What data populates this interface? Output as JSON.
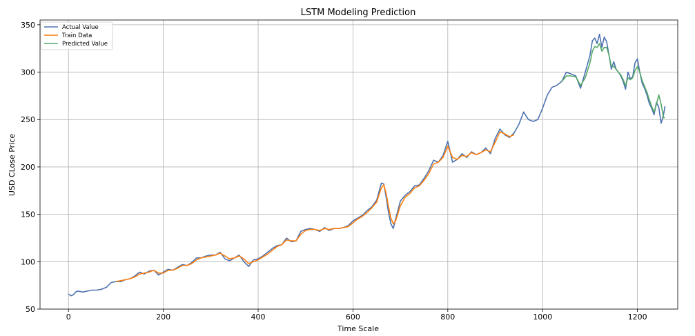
{
  "chart_data": {
    "type": "line",
    "title": "LSTM Modeling Prediction",
    "xlabel": "Time Scale",
    "ylabel": "USD CLose Price",
    "xlim": [
      -60,
      1285
    ],
    "ylim": [
      50,
      355
    ],
    "xticks": [
      0,
      200,
      400,
      600,
      800,
      1000,
      1200
    ],
    "yticks": [
      50,
      100,
      150,
      200,
      250,
      300,
      350
    ],
    "grid": true,
    "legend_position": "top-left",
    "series": [
      {
        "name": "Actual Value",
        "color": "#4c72b0",
        "points": [
          [
            0,
            66
          ],
          [
            5,
            64
          ],
          [
            10,
            65
          ],
          [
            15,
            68
          ],
          [
            20,
            69
          ],
          [
            30,
            68
          ],
          [
            40,
            69
          ],
          [
            50,
            70
          ],
          [
            60,
            70
          ],
          [
            70,
            71
          ],
          [
            80,
            73
          ],
          [
            90,
            78
          ],
          [
            100,
            79
          ],
          [
            110,
            79
          ],
          [
            120,
            81
          ],
          [
            130,
            82
          ],
          [
            140,
            85
          ],
          [
            150,
            89
          ],
          [
            160,
            87
          ],
          [
            170,
            90
          ],
          [
            180,
            91
          ],
          [
            190,
            86
          ],
          [
            200,
            89
          ],
          [
            210,
            92
          ],
          [
            220,
            91
          ],
          [
            230,
            94
          ],
          [
            240,
            97
          ],
          [
            250,
            96
          ],
          [
            260,
            99
          ],
          [
            270,
            104
          ],
          [
            280,
            104
          ],
          [
            290,
            106
          ],
          [
            300,
            107
          ],
          [
            310,
            107
          ],
          [
            320,
            110
          ],
          [
            330,
            103
          ],
          [
            340,
            101
          ],
          [
            350,
            104
          ],
          [
            360,
            107
          ],
          [
            370,
            100
          ],
          [
            380,
            95
          ],
          [
            390,
            102
          ],
          [
            400,
            103
          ],
          [
            410,
            106
          ],
          [
            420,
            110
          ],
          [
            430,
            114
          ],
          [
            440,
            117
          ],
          [
            450,
            118
          ],
          [
            460,
            125
          ],
          [
            470,
            121
          ],
          [
            480,
            122
          ],
          [
            490,
            132
          ],
          [
            500,
            134
          ],
          [
            510,
            135
          ],
          [
            520,
            134
          ],
          [
            530,
            132
          ],
          [
            540,
            136
          ],
          [
            550,
            133
          ],
          [
            560,
            135
          ],
          [
            570,
            135
          ],
          [
            580,
            136
          ],
          [
            590,
            138
          ],
          [
            600,
            143
          ],
          [
            610,
            146
          ],
          [
            620,
            149
          ],
          [
            630,
            154
          ],
          [
            640,
            158
          ],
          [
            650,
            165
          ],
          [
            660,
            183
          ],
          [
            665,
            182
          ],
          [
            670,
            168
          ],
          [
            675,
            152
          ],
          [
            680,
            140
          ],
          [
            685,
            135
          ],
          [
            690,
            145
          ],
          [
            700,
            164
          ],
          [
            710,
            170
          ],
          [
            720,
            174
          ],
          [
            730,
            180
          ],
          [
            740,
            181
          ],
          [
            750,
            188
          ],
          [
            760,
            196
          ],
          [
            770,
            207
          ],
          [
            780,
            205
          ],
          [
            790,
            212
          ],
          [
            800,
            227
          ],
          [
            810,
            205
          ],
          [
            820,
            208
          ],
          [
            830,
            214
          ],
          [
            840,
            210
          ],
          [
            850,
            216
          ],
          [
            860,
            213
          ],
          [
            870,
            215
          ],
          [
            880,
            220
          ],
          [
            890,
            214
          ],
          [
            900,
            230
          ],
          [
            910,
            240
          ],
          [
            920,
            234
          ],
          [
            930,
            231
          ],
          [
            940,
            236
          ],
          [
            950,
            245
          ],
          [
            960,
            258
          ],
          [
            970,
            250
          ],
          [
            980,
            248
          ],
          [
            990,
            250
          ],
          [
            1000,
            262
          ],
          [
            1010,
            276
          ],
          [
            1020,
            284
          ],
          [
            1030,
            286
          ],
          [
            1040,
            290
          ],
          [
            1050,
            300
          ],
          [
            1060,
            298
          ],
          [
            1070,
            296
          ],
          [
            1080,
            283
          ],
          [
            1090,
            300
          ],
          [
            1100,
            318
          ],
          [
            1105,
            333
          ],
          [
            1110,
            336
          ],
          [
            1115,
            330
          ],
          [
            1120,
            340
          ],
          [
            1125,
            326
          ],
          [
            1130,
            337
          ],
          [
            1135,
            332
          ],
          [
            1140,
            318
          ],
          [
            1145,
            303
          ],
          [
            1150,
            311
          ],
          [
            1155,
            303
          ],
          [
            1160,
            300
          ],
          [
            1165,
            296
          ],
          [
            1170,
            290
          ],
          [
            1175,
            282
          ],
          [
            1180,
            300
          ],
          [
            1185,
            293
          ],
          [
            1190,
            295
          ],
          [
            1195,
            310
          ],
          [
            1200,
            314
          ],
          [
            1205,
            300
          ],
          [
            1210,
            288
          ],
          [
            1215,
            283
          ],
          [
            1220,
            276
          ],
          [
            1225,
            267
          ],
          [
            1230,
            262
          ],
          [
            1235,
            255
          ],
          [
            1240,
            268
          ],
          [
            1245,
            263
          ],
          [
            1250,
            246
          ],
          [
            1255,
            255
          ],
          [
            1258,
            264
          ]
        ]
      },
      {
        "name": "Train Data",
        "color": "#ff7f0e",
        "points": [
          [
            100,
            79
          ],
          [
            110,
            80
          ],
          [
            120,
            81
          ],
          [
            130,
            82
          ],
          [
            140,
            84
          ],
          [
            150,
            87
          ],
          [
            160,
            88
          ],
          [
            170,
            89
          ],
          [
            180,
            91
          ],
          [
            190,
            88
          ],
          [
            200,
            88
          ],
          [
            210,
            91
          ],
          [
            220,
            91
          ],
          [
            230,
            93
          ],
          [
            240,
            96
          ],
          [
            250,
            96
          ],
          [
            260,
            98
          ],
          [
            270,
            102
          ],
          [
            280,
            104
          ],
          [
            290,
            105
          ],
          [
            300,
            106
          ],
          [
            310,
            107
          ],
          [
            320,
            109
          ],
          [
            330,
            106
          ],
          [
            340,
            103
          ],
          [
            350,
            104
          ],
          [
            360,
            106
          ],
          [
            370,
            103
          ],
          [
            380,
            98
          ],
          [
            390,
            100
          ],
          [
            400,
            102
          ],
          [
            410,
            105
          ],
          [
            420,
            108
          ],
          [
            430,
            112
          ],
          [
            440,
            116
          ],
          [
            450,
            118
          ],
          [
            460,
            123
          ],
          [
            470,
            122
          ],
          [
            480,
            122
          ],
          [
            490,
            129
          ],
          [
            500,
            133
          ],
          [
            510,
            134
          ],
          [
            520,
            134
          ],
          [
            530,
            133
          ],
          [
            540,
            135
          ],
          [
            550,
            134
          ],
          [
            560,
            135
          ],
          [
            570,
            135
          ],
          [
            580,
            136
          ],
          [
            590,
            137
          ],
          [
            600,
            141
          ],
          [
            610,
            145
          ],
          [
            620,
            148
          ],
          [
            630,
            152
          ],
          [
            640,
            157
          ],
          [
            650,
            163
          ],
          [
            660,
            178
          ],
          [
            665,
            181
          ],
          [
            670,
            172
          ],
          [
            675,
            158
          ],
          [
            680,
            146
          ],
          [
            685,
            140
          ],
          [
            690,
            143
          ],
          [
            700,
            159
          ],
          [
            710,
            168
          ],
          [
            720,
            172
          ],
          [
            730,
            178
          ],
          [
            740,
            180
          ],
          [
            750,
            186
          ],
          [
            760,
            193
          ],
          [
            770,
            203
          ],
          [
            780,
            205
          ],
          [
            790,
            210
          ],
          [
            800,
            222
          ],
          [
            810,
            210
          ],
          [
            820,
            208
          ],
          [
            830,
            212
          ],
          [
            840,
            211
          ],
          [
            850,
            215
          ],
          [
            860,
            213
          ],
          [
            870,
            215
          ],
          [
            880,
            218
          ],
          [
            890,
            216
          ],
          [
            900,
            226
          ],
          [
            910,
            237
          ],
          [
            920,
            235
          ],
          [
            930,
            232
          ],
          [
            940,
            234
          ]
        ]
      },
      {
        "name": "Predicted Value",
        "color": "#55a868",
        "points": [
          [
            1040,
            290
          ],
          [
            1050,
            296
          ],
          [
            1060,
            296
          ],
          [
            1070,
            295
          ],
          [
            1080,
            286
          ],
          [
            1090,
            294
          ],
          [
            1100,
            310
          ],
          [
            1105,
            322
          ],
          [
            1110,
            327
          ],
          [
            1115,
            326
          ],
          [
            1120,
            330
          ],
          [
            1125,
            322
          ],
          [
            1130,
            326
          ],
          [
            1135,
            326
          ],
          [
            1140,
            318
          ],
          [
            1145,
            306
          ],
          [
            1150,
            306
          ],
          [
            1155,
            303
          ],
          [
            1160,
            300
          ],
          [
            1165,
            297
          ],
          [
            1170,
            292
          ],
          [
            1175,
            286
          ],
          [
            1180,
            294
          ],
          [
            1185,
            292
          ],
          [
            1190,
            294
          ],
          [
            1195,
            302
          ],
          [
            1200,
            306
          ],
          [
            1205,
            300
          ],
          [
            1210,
            291
          ],
          [
            1215,
            285
          ],
          [
            1220,
            279
          ],
          [
            1225,
            271
          ],
          [
            1230,
            264
          ],
          [
            1235,
            258
          ],
          [
            1240,
            266
          ],
          [
            1245,
            276
          ],
          [
            1250,
            266
          ],
          [
            1255,
            252
          ],
          [
            1258,
            252
          ]
        ]
      }
    ]
  }
}
